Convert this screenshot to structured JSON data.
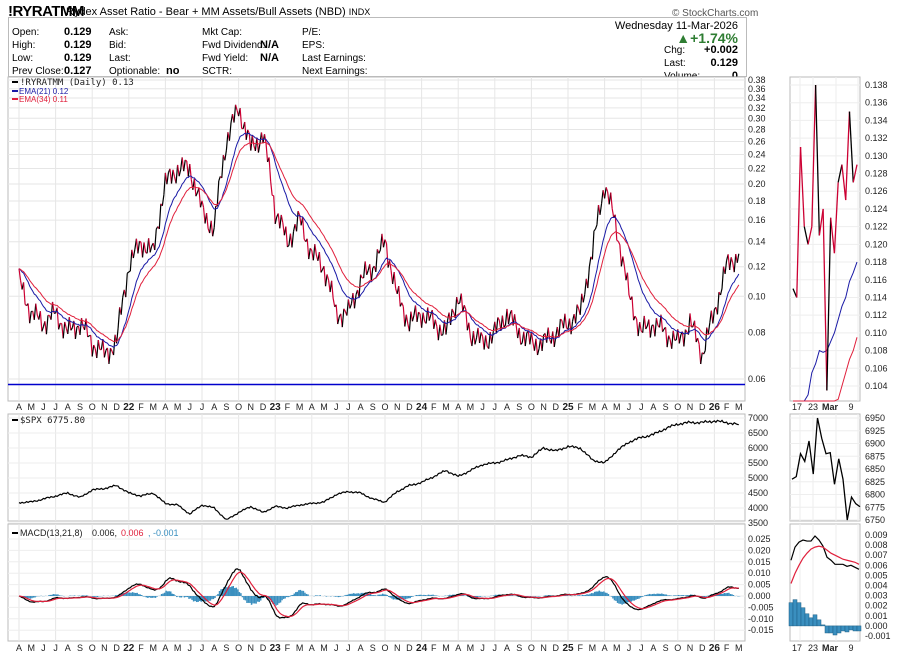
{
  "header": {
    "symbol": "!RYRATMM",
    "description": "Rydex Asset Ratio - Bear + MM Assets/Bull Assets (NBD)",
    "exchange": "INDX",
    "copyright": "© StockCharts.com",
    "date": "Wednesday  11-Mar-2026",
    "pct_change": "▲+1.74%",
    "up_color": "#2e7d32"
  },
  "info": {
    "col1": [
      {
        "label": "Open:",
        "value": "0.129"
      },
      {
        "label": "High:",
        "value": "0.129"
      },
      {
        "label": "Low:",
        "value": "0.129"
      },
      {
        "label": "Prev Close:",
        "value": "0.127"
      }
    ],
    "col2": [
      {
        "label": "Ask:",
        "value": ""
      },
      {
        "label": "Bid:",
        "value": ""
      },
      {
        "label": "Last:",
        "value": ""
      },
      {
        "label": "Optionable:",
        "value": "no"
      }
    ],
    "col3": [
      {
        "label": "Mkt Cap:",
        "value": ""
      },
      {
        "label": "Fwd Dividend:",
        "value": "N/A"
      },
      {
        "label": "Fwd Yield:",
        "value": "N/A"
      },
      {
        "label": "SCTR:",
        "value": ""
      }
    ],
    "col4": [
      {
        "label": "P/E:"
      },
      {
        "label": "EPS:"
      },
      {
        "label": "Last Earnings:"
      },
      {
        "label": "Next Earnings:"
      }
    ],
    "col5": [
      {
        "label": "Chg:",
        "value": "+0.002"
      },
      {
        "label": "Last:",
        "value": "0.129"
      },
      {
        "label": "Volume:",
        "value": "0"
      }
    ]
  },
  "chart_data": [
    {
      "type": "line",
      "title": "!RYRATMM (Daily) 0.13",
      "legend": [
        "!RYRATMM (Daily) 0.13",
        "EMA(21) 0.12",
        "EMA(34) 0.11"
      ],
      "scale": "log",
      "ylim": [
        0.055,
        0.39
      ],
      "yticks": [
        "0.38",
        "0.36",
        "0.34",
        "0.32",
        "0.30",
        "0.28",
        "0.26",
        "0.24",
        "0.22",
        "0.20",
        "0.18",
        "0.16",
        "0.14",
        "0.12",
        "0.10",
        "0.08",
        "0.06"
      ],
      "support_line": 0.058,
      "x_start": "Apr 2021",
      "x_step": "month",
      "values": [
        0.11,
        0.09,
        0.085,
        0.09,
        0.08,
        0.085,
        0.075,
        0.07,
        0.075,
        0.12,
        0.14,
        0.13,
        0.2,
        0.22,
        0.22,
        0.17,
        0.15,
        0.26,
        0.32,
        0.25,
        0.27,
        0.17,
        0.14,
        0.16,
        0.13,
        0.12,
        0.09,
        0.09,
        0.11,
        0.12,
        0.14,
        0.1,
        0.085,
        0.09,
        0.085,
        0.08,
        0.1,
        0.08,
        0.075,
        0.08,
        0.09,
        0.08,
        0.075,
        0.075,
        0.08,
        0.085,
        0.09,
        0.13,
        0.2,
        0.15,
        0.1,
        0.08,
        0.085,
        0.08,
        0.075,
        0.085,
        0.07,
        0.09,
        0.12,
        0.13
      ],
      "colors": {
        "price": "#000000",
        "price_alt": "#cc0033",
        "ema21": "#1a1aa6",
        "ema34": "#e0203c",
        "support": "#0000cc"
      }
    },
    {
      "type": "line",
      "title": "$SPX 6775.80",
      "ylim": [
        3400,
        7100
      ],
      "yticks": [
        "7000",
        "6500",
        "6000",
        "5500",
        "5000",
        "4500",
        "4000",
        "3500"
      ],
      "values": [
        4180,
        4200,
        4300,
        4400,
        4500,
        4350,
        4600,
        4650,
        4750,
        4500,
        4400,
        4500,
        4150,
        4100,
        3800,
        4100,
        4000,
        3600,
        3850,
        4050,
        3850,
        4050,
        4000,
        4100,
        4150,
        4200,
        4450,
        4550,
        4500,
        4300,
        4200,
        4550,
        4750,
        4850,
        5050,
        5250,
        5050,
        5250,
        5450,
        5500,
        5600,
        5750,
        5700,
        6000,
        5900,
        6050,
        6000,
        5600,
        5500,
        5900,
        6200,
        6350,
        6450,
        6650,
        6800,
        6850,
        6850,
        6900,
        6850,
        6776
      ]
    },
    {
      "type": "line",
      "title": "MACD(13,21,8)",
      "legend": [
        "0.006",
        "0.006",
        "-0.001"
      ],
      "ylim": [
        -0.019,
        0.029
      ],
      "yticks": [
        "0.025",
        "0.020",
        "0.015",
        "0.010",
        "0.005",
        "0.000",
        "-0.005",
        "-0.010",
        "-0.015"
      ],
      "colors": {
        "macd": "#000000",
        "signal": "#e0203c",
        "hist": "#3a8fbf"
      }
    },
    {
      "type": "line",
      "title": "mini-ratio",
      "xticks": [
        "17",
        "23",
        "Mar",
        "9"
      ],
      "yticks": [
        "0.138",
        "0.136",
        "0.134",
        "0.132",
        "0.130",
        "0.128",
        "0.126",
        "0.124",
        "0.122",
        "0.120",
        "0.118",
        "0.116",
        "0.114",
        "0.112",
        "0.110",
        "0.108",
        "0.106",
        "0.104"
      ],
      "ylim": [
        0.1025,
        0.139
      ],
      "values": [
        0.115,
        0.114,
        0.131,
        0.122,
        0.12,
        0.122,
        0.138,
        0.121,
        0.124,
        0.1035,
        0.123,
        0.119,
        0.127,
        0.129,
        0.125,
        0.135,
        0.127,
        0.129
      ],
      "ema21": [
        0.1,
        0.1,
        0.101,
        0.102,
        0.103,
        0.1055,
        0.1065,
        0.108,
        0.1078,
        0.108,
        0.109,
        0.11,
        0.1115,
        0.113,
        0.114,
        0.1158,
        0.1168,
        0.118
      ],
      "ema34": [
        0.098,
        0.098,
        0.098,
        0.099,
        0.099,
        0.099,
        0.099,
        0.099,
        0.1,
        0.1,
        0.1,
        0.101,
        0.1025,
        0.104,
        0.1055,
        0.107,
        0.108,
        0.1095
      ]
    },
    {
      "type": "line",
      "title": "mini-spx",
      "yticks": [
        "6950",
        "6925",
        "6900",
        "6875",
        "6850",
        "6825",
        "6800",
        "6775",
        "6750"
      ],
      "ylim": [
        6740,
        6960
      ],
      "values": [
        6830,
        6835,
        6880,
        6865,
        6905,
        6840,
        6950,
        6910,
        6880,
        6882,
        6820,
        6870,
        6830,
        6750,
        6795,
        6782,
        6776
      ]
    },
    {
      "type": "line",
      "title": "mini-macd",
      "yticks": [
        "0.009",
        "0.008",
        "0.007",
        "0.006",
        "0.005",
        "0.004",
        "0.003",
        "0.002",
        "0.001",
        "0.000",
        "-0.001"
      ],
      "ylim": [
        -0.0015,
        0.0095
      ],
      "macd": [
        0.0065,
        0.0078,
        0.0083,
        0.0085,
        0.0084,
        0.0084,
        0.0089,
        0.0085,
        0.0079,
        0.0068,
        0.0065,
        0.0061,
        0.0061,
        0.0061,
        0.0059,
        0.006,
        0.0058,
        0.0056
      ],
      "signal": [
        0.0042,
        0.0052,
        0.006,
        0.0067,
        0.0072,
        0.0076,
        0.0078,
        0.0079,
        0.0078,
        0.0075,
        0.0072,
        0.007,
        0.0068,
        0.0066,
        0.0065,
        0.0064,
        0.0063,
        0.0061
      ],
      "hist": [
        0.0023,
        0.0026,
        0.0023,
        0.0018,
        0.0012,
        0.0008,
        0.0011,
        0.0006,
        0.0001,
        -0.0007,
        -0.0007,
        -0.0009,
        -0.0007,
        -0.0005,
        -0.0006,
        -0.0004,
        -0.0005,
        -0.0005
      ]
    }
  ],
  "x_axis": {
    "months": [
      "A",
      "M",
      "J",
      "J",
      "A",
      "S",
      "O",
      "N",
      "D",
      "22",
      "F",
      "M",
      "A",
      "M",
      "J",
      "J",
      "A",
      "S",
      "O",
      "N",
      "D",
      "23",
      "F",
      "M",
      "A",
      "M",
      "J",
      "J",
      "A",
      "S",
      "O",
      "N",
      "D",
      "24",
      "F",
      "M",
      "A",
      "M",
      "J",
      "J",
      "A",
      "S",
      "O",
      "N",
      "D",
      "25",
      "F",
      "M",
      "A",
      "M",
      "J",
      "J",
      "A",
      "S",
      "O",
      "N",
      "D",
      "26",
      "F",
      "M"
    ]
  }
}
